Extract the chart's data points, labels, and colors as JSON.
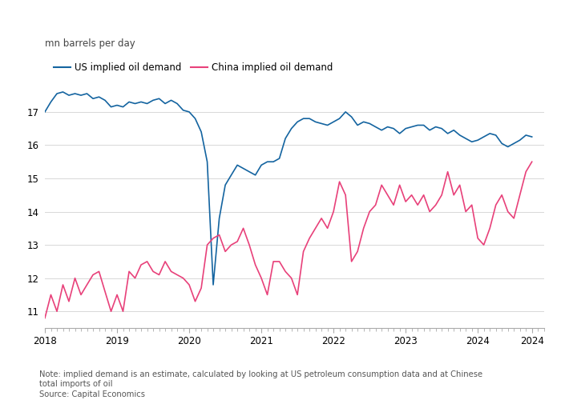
{
  "title_ylabel": "mn barrels per day",
  "us_color": "#1464a0",
  "china_color": "#e8417a",
  "ylim": [
    10.5,
    18.2
  ],
  "yticks": [
    11,
    12,
    13,
    14,
    15,
    16,
    17
  ],
  "xlim": [
    2018.0,
    2024.92
  ],
  "xticks": [
    2018,
    2019,
    2020,
    2021,
    2022,
    2023,
    2024,
    2024.75
  ],
  "xtick_labels": [
    "2018",
    "2019",
    "2020",
    "2021",
    "2022",
    "2023",
    "2024",
    "2024"
  ],
  "note": "Note: implied demand is an estimate, calculated by looking at US petroleum consumption data and at Chinese\ntotal imports of oil",
  "source": "Source: Capital Economics",
  "legend_us": "US implied oil demand",
  "legend_china": "China implied oil demand",
  "us_data": [
    [
      2018.0,
      17.0
    ],
    [
      2018.083,
      17.3
    ],
    [
      2018.167,
      17.55
    ],
    [
      2018.25,
      17.6
    ],
    [
      2018.333,
      17.5
    ],
    [
      2018.417,
      17.55
    ],
    [
      2018.5,
      17.5
    ],
    [
      2018.583,
      17.55
    ],
    [
      2018.667,
      17.4
    ],
    [
      2018.75,
      17.45
    ],
    [
      2018.833,
      17.35
    ],
    [
      2018.917,
      17.15
    ],
    [
      2019.0,
      17.2
    ],
    [
      2019.083,
      17.15
    ],
    [
      2019.167,
      17.3
    ],
    [
      2019.25,
      17.25
    ],
    [
      2019.333,
      17.3
    ],
    [
      2019.417,
      17.25
    ],
    [
      2019.5,
      17.35
    ],
    [
      2019.583,
      17.4
    ],
    [
      2019.667,
      17.25
    ],
    [
      2019.75,
      17.35
    ],
    [
      2019.833,
      17.25
    ],
    [
      2019.917,
      17.05
    ],
    [
      2020.0,
      17.0
    ],
    [
      2020.083,
      16.8
    ],
    [
      2020.167,
      16.4
    ],
    [
      2020.25,
      15.5
    ],
    [
      2020.333,
      11.8
    ],
    [
      2020.417,
      13.8
    ],
    [
      2020.5,
      14.8
    ],
    [
      2020.583,
      15.1
    ],
    [
      2020.667,
      15.4
    ],
    [
      2020.75,
      15.3
    ],
    [
      2020.833,
      15.2
    ],
    [
      2020.917,
      15.1
    ],
    [
      2021.0,
      15.4
    ],
    [
      2021.083,
      15.5
    ],
    [
      2021.167,
      15.5
    ],
    [
      2021.25,
      15.6
    ],
    [
      2021.333,
      16.2
    ],
    [
      2021.417,
      16.5
    ],
    [
      2021.5,
      16.7
    ],
    [
      2021.583,
      16.8
    ],
    [
      2021.667,
      16.8
    ],
    [
      2021.75,
      16.7
    ],
    [
      2021.833,
      16.65
    ],
    [
      2021.917,
      16.6
    ],
    [
      2022.0,
      16.7
    ],
    [
      2022.083,
      16.8
    ],
    [
      2022.167,
      17.0
    ],
    [
      2022.25,
      16.85
    ],
    [
      2022.333,
      16.6
    ],
    [
      2022.417,
      16.7
    ],
    [
      2022.5,
      16.65
    ],
    [
      2022.583,
      16.55
    ],
    [
      2022.667,
      16.45
    ],
    [
      2022.75,
      16.55
    ],
    [
      2022.833,
      16.5
    ],
    [
      2022.917,
      16.35
    ],
    [
      2023.0,
      16.5
    ],
    [
      2023.083,
      16.55
    ],
    [
      2023.167,
      16.6
    ],
    [
      2023.25,
      16.6
    ],
    [
      2023.333,
      16.45
    ],
    [
      2023.417,
      16.55
    ],
    [
      2023.5,
      16.5
    ],
    [
      2023.583,
      16.35
    ],
    [
      2023.667,
      16.45
    ],
    [
      2023.75,
      16.3
    ],
    [
      2023.833,
      16.2
    ],
    [
      2023.917,
      16.1
    ],
    [
      2024.0,
      16.15
    ],
    [
      2024.083,
      16.25
    ],
    [
      2024.167,
      16.35
    ],
    [
      2024.25,
      16.3
    ],
    [
      2024.333,
      16.05
    ],
    [
      2024.417,
      15.95
    ],
    [
      2024.5,
      16.05
    ],
    [
      2024.583,
      16.15
    ],
    [
      2024.667,
      16.3
    ],
    [
      2024.75,
      16.25
    ]
  ],
  "china_data": [
    [
      2018.0,
      10.8
    ],
    [
      2018.083,
      11.5
    ],
    [
      2018.167,
      11.0
    ],
    [
      2018.25,
      11.8
    ],
    [
      2018.333,
      11.3
    ],
    [
      2018.417,
      12.0
    ],
    [
      2018.5,
      11.5
    ],
    [
      2018.583,
      11.8
    ],
    [
      2018.667,
      12.1
    ],
    [
      2018.75,
      12.2
    ],
    [
      2018.833,
      11.6
    ],
    [
      2018.917,
      11.0
    ],
    [
      2019.0,
      11.5
    ],
    [
      2019.083,
      11.0
    ],
    [
      2019.167,
      12.2
    ],
    [
      2019.25,
      12.0
    ],
    [
      2019.333,
      12.4
    ],
    [
      2019.417,
      12.5
    ],
    [
      2019.5,
      12.2
    ],
    [
      2019.583,
      12.1
    ],
    [
      2019.667,
      12.5
    ],
    [
      2019.75,
      12.2
    ],
    [
      2019.833,
      12.1
    ],
    [
      2019.917,
      12.0
    ],
    [
      2020.0,
      11.8
    ],
    [
      2020.083,
      11.3
    ],
    [
      2020.167,
      11.7
    ],
    [
      2020.25,
      13.0
    ],
    [
      2020.333,
      13.2
    ],
    [
      2020.417,
      13.3
    ],
    [
      2020.5,
      12.8
    ],
    [
      2020.583,
      13.0
    ],
    [
      2020.667,
      13.1
    ],
    [
      2020.75,
      13.5
    ],
    [
      2020.833,
      13.0
    ],
    [
      2020.917,
      12.4
    ],
    [
      2021.0,
      12.0
    ],
    [
      2021.083,
      11.5
    ],
    [
      2021.167,
      12.5
    ],
    [
      2021.25,
      12.5
    ],
    [
      2021.333,
      12.2
    ],
    [
      2021.417,
      12.0
    ],
    [
      2021.5,
      11.5
    ],
    [
      2021.583,
      12.8
    ],
    [
      2021.667,
      13.2
    ],
    [
      2021.75,
      13.5
    ],
    [
      2021.833,
      13.8
    ],
    [
      2021.917,
      13.5
    ],
    [
      2022.0,
      14.0
    ],
    [
      2022.083,
      14.9
    ],
    [
      2022.167,
      14.5
    ],
    [
      2022.25,
      12.5
    ],
    [
      2022.333,
      12.8
    ],
    [
      2022.417,
      13.5
    ],
    [
      2022.5,
      14.0
    ],
    [
      2022.583,
      14.2
    ],
    [
      2022.667,
      14.8
    ],
    [
      2022.75,
      14.5
    ],
    [
      2022.833,
      14.2
    ],
    [
      2022.917,
      14.8
    ],
    [
      2023.0,
      14.3
    ],
    [
      2023.083,
      14.5
    ],
    [
      2023.167,
      14.2
    ],
    [
      2023.25,
      14.5
    ],
    [
      2023.333,
      14.0
    ],
    [
      2023.417,
      14.2
    ],
    [
      2023.5,
      14.5
    ],
    [
      2023.583,
      15.2
    ],
    [
      2023.667,
      14.5
    ],
    [
      2023.75,
      14.8
    ],
    [
      2023.833,
      14.0
    ],
    [
      2023.917,
      14.2
    ],
    [
      2024.0,
      13.2
    ],
    [
      2024.083,
      13.0
    ],
    [
      2024.167,
      13.5
    ],
    [
      2024.25,
      14.2
    ],
    [
      2024.333,
      14.5
    ],
    [
      2024.417,
      14.0
    ],
    [
      2024.5,
      13.8
    ],
    [
      2024.583,
      14.5
    ],
    [
      2024.667,
      15.2
    ],
    [
      2024.75,
      15.5
    ]
  ]
}
